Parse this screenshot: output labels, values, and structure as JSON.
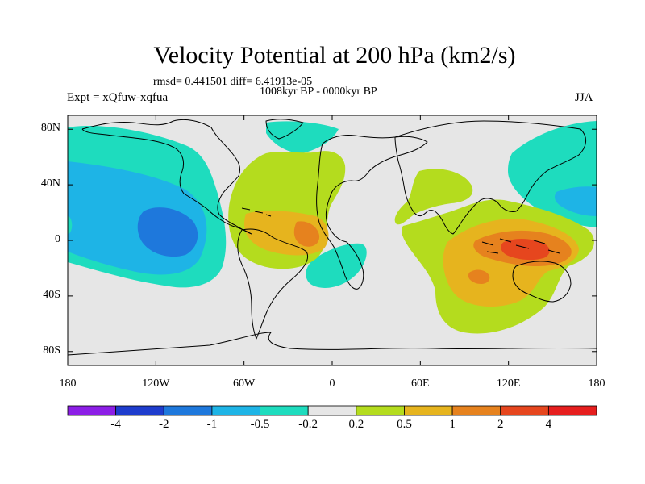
{
  "title": "Velocity Potential at 200 hPa (km2/s)",
  "stats": "rmsd= 0.441501 diff= 6.41913e-05",
  "period": "1008kyr BP - 0000kyr BP",
  "experiment": "Expt = xQfuw-xqfua",
  "season": "JJA",
  "y_axis": {
    "ticks": [
      {
        "value": 80,
        "label": "80N"
      },
      {
        "value": 40,
        "label": "40N"
      },
      {
        "value": 0,
        "label": "0"
      },
      {
        "value": -40,
        "label": "40S"
      },
      {
        "value": -80,
        "label": "80S"
      }
    ]
  },
  "x_axis": {
    "ticks": [
      {
        "value": -180,
        "label": "180"
      },
      {
        "value": -120,
        "label": "120W"
      },
      {
        "value": -60,
        "label": "60W"
      },
      {
        "value": 0,
        "label": "0"
      },
      {
        "value": 60,
        "label": "60E"
      },
      {
        "value": 120,
        "label": "120E"
      },
      {
        "value": 180,
        "label": "180"
      }
    ]
  },
  "colorbar": {
    "levels": [
      "-4",
      "-2",
      "-1",
      "-0.5",
      "-0.2",
      "0.2",
      "0.5",
      "1",
      "2",
      "4"
    ],
    "colors": [
      "#8c1ee6",
      "#1e3ccd",
      "#1e78dc",
      "#1eb4e6",
      "#1edcbe",
      "#e6e6e6",
      "#b4dc1e",
      "#e6b41e",
      "#e6821e",
      "#e6461e",
      "#e61e1e"
    ]
  },
  "colors": {
    "background": "#e6e6e6",
    "coast": "#000000"
  }
}
